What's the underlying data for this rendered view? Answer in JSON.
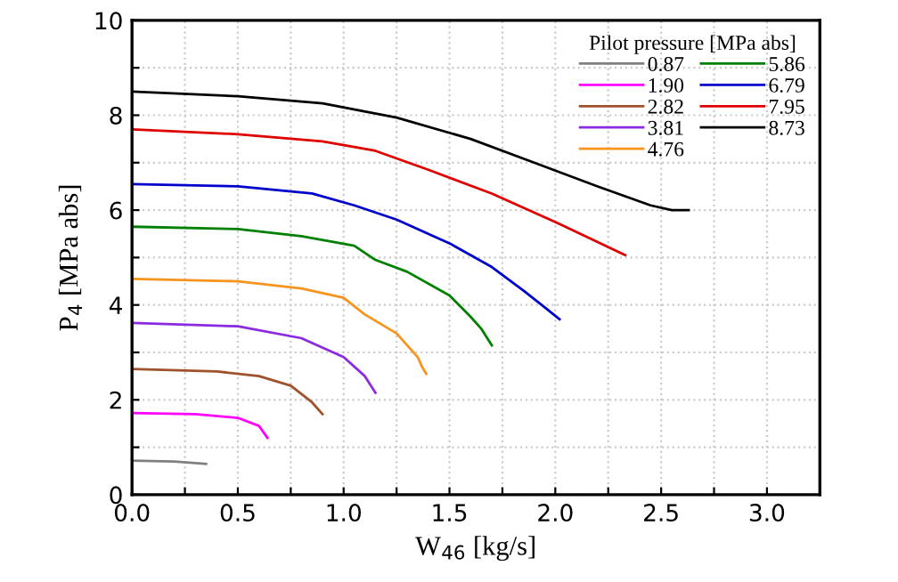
{
  "chart_data": {
    "type": "line",
    "xlabel": "W$_{46}$ [kg/s]",
    "ylabel": "P$_{4}$ [MPa abs]",
    "legend_title": "Pilot pressure [MPa abs]",
    "legend": "top right",
    "grid": true,
    "marker": "none",
    "line_style": "solid",
    "xlim": [
      0,
      3.25
    ],
    "ylim": [
      0,
      10
    ],
    "xticks": [
      {
        "value": 0,
        "label": "0.0"
      },
      {
        "value": 0.25,
        "label": null
      },
      {
        "value": 0.5,
        "label": "0.5"
      },
      {
        "value": 0.75,
        "label": null
      },
      {
        "value": 1,
        "label": "1.0"
      },
      {
        "value": 1.25,
        "label": null
      },
      {
        "value": 1.5,
        "label": "1.5"
      },
      {
        "value": 1.75,
        "label": null
      },
      {
        "value": 2,
        "label": "2.0"
      },
      {
        "value": 2.25,
        "label": null
      },
      {
        "value": 2.5,
        "label": "2.5"
      },
      {
        "value": 2.75,
        "label": null
      },
      {
        "value": 3,
        "label": "3.0"
      }
    ],
    "yticks": [
      0,
      {
        "value": 1,
        "label": null
      },
      2,
      {
        "value": 3,
        "label": null
      },
      4,
      {
        "value": 5,
        "label": null
      },
      6,
      {
        "value": 7,
        "label": null
      },
      8,
      {
        "value": 9,
        "label": null
      },
      10
    ],
    "series": [
      {
        "name": "0.87",
        "color": "#808080",
        "x": [
          0,
          0.2,
          0.35
        ],
        "values": [
          0.72,
          0.7,
          0.65
        ]
      },
      {
        "name": "1.90",
        "color": "#ff00ff",
        "x": [
          0,
          0.3,
          0.5,
          0.6,
          0.64
        ],
        "values": [
          1.72,
          1.7,
          1.62,
          1.45,
          1.2
        ]
      },
      {
        "name": "2.82",
        "color": "#a0522d",
        "x": [
          0,
          0.4,
          0.6,
          0.75,
          0.85,
          0.9
        ],
        "values": [
          2.65,
          2.6,
          2.5,
          2.3,
          1.95,
          1.7
        ]
      },
      {
        "name": "3.81",
        "color": "#8a2be2",
        "x": [
          0,
          0.5,
          0.8,
          1.0,
          1.1,
          1.15
        ],
        "values": [
          3.62,
          3.55,
          3.3,
          2.9,
          2.5,
          2.15
        ]
      },
      {
        "name": "4.76",
        "color": "#f7941d",
        "x": [
          0,
          0.5,
          0.8,
          1.0,
          1.1,
          1.25,
          1.35,
          1.37,
          1.39
        ],
        "values": [
          4.55,
          4.5,
          4.35,
          4.15,
          3.8,
          3.4,
          2.9,
          2.7,
          2.55
        ]
      },
      {
        "name": "5.86",
        "color": "#008000",
        "x": [
          0,
          0.5,
          0.8,
          1.05,
          1.15,
          1.3,
          1.5,
          1.6,
          1.65,
          1.7
        ],
        "values": [
          5.65,
          5.6,
          5.45,
          5.25,
          4.95,
          4.7,
          4.2,
          3.75,
          3.5,
          3.15
        ]
      },
      {
        "name": "6.79",
        "color": "#0000cc",
        "x": [
          0,
          0.5,
          0.85,
          1.05,
          1.25,
          1.5,
          1.7,
          1.85,
          1.95,
          2.02
        ],
        "values": [
          6.55,
          6.5,
          6.35,
          6.1,
          5.8,
          5.3,
          4.8,
          4.3,
          3.95,
          3.7
        ]
      },
      {
        "name": "7.95",
        "color": "#e00000",
        "x": [
          0,
          0.5,
          0.9,
          1.15,
          1.4,
          1.7,
          2.0,
          2.33
        ],
        "values": [
          7.7,
          7.6,
          7.45,
          7.25,
          6.85,
          6.35,
          5.75,
          5.05
        ]
      },
      {
        "name": "8.73",
        "color": "#000000",
        "x": [
          0,
          0.5,
          0.9,
          1.25,
          1.6,
          1.9,
          2.2,
          2.45,
          2.55,
          2.63
        ],
        "values": [
          8.5,
          8.4,
          8.25,
          7.95,
          7.5,
          7.0,
          6.5,
          6.1,
          6.0,
          6.0
        ]
      }
    ]
  }
}
